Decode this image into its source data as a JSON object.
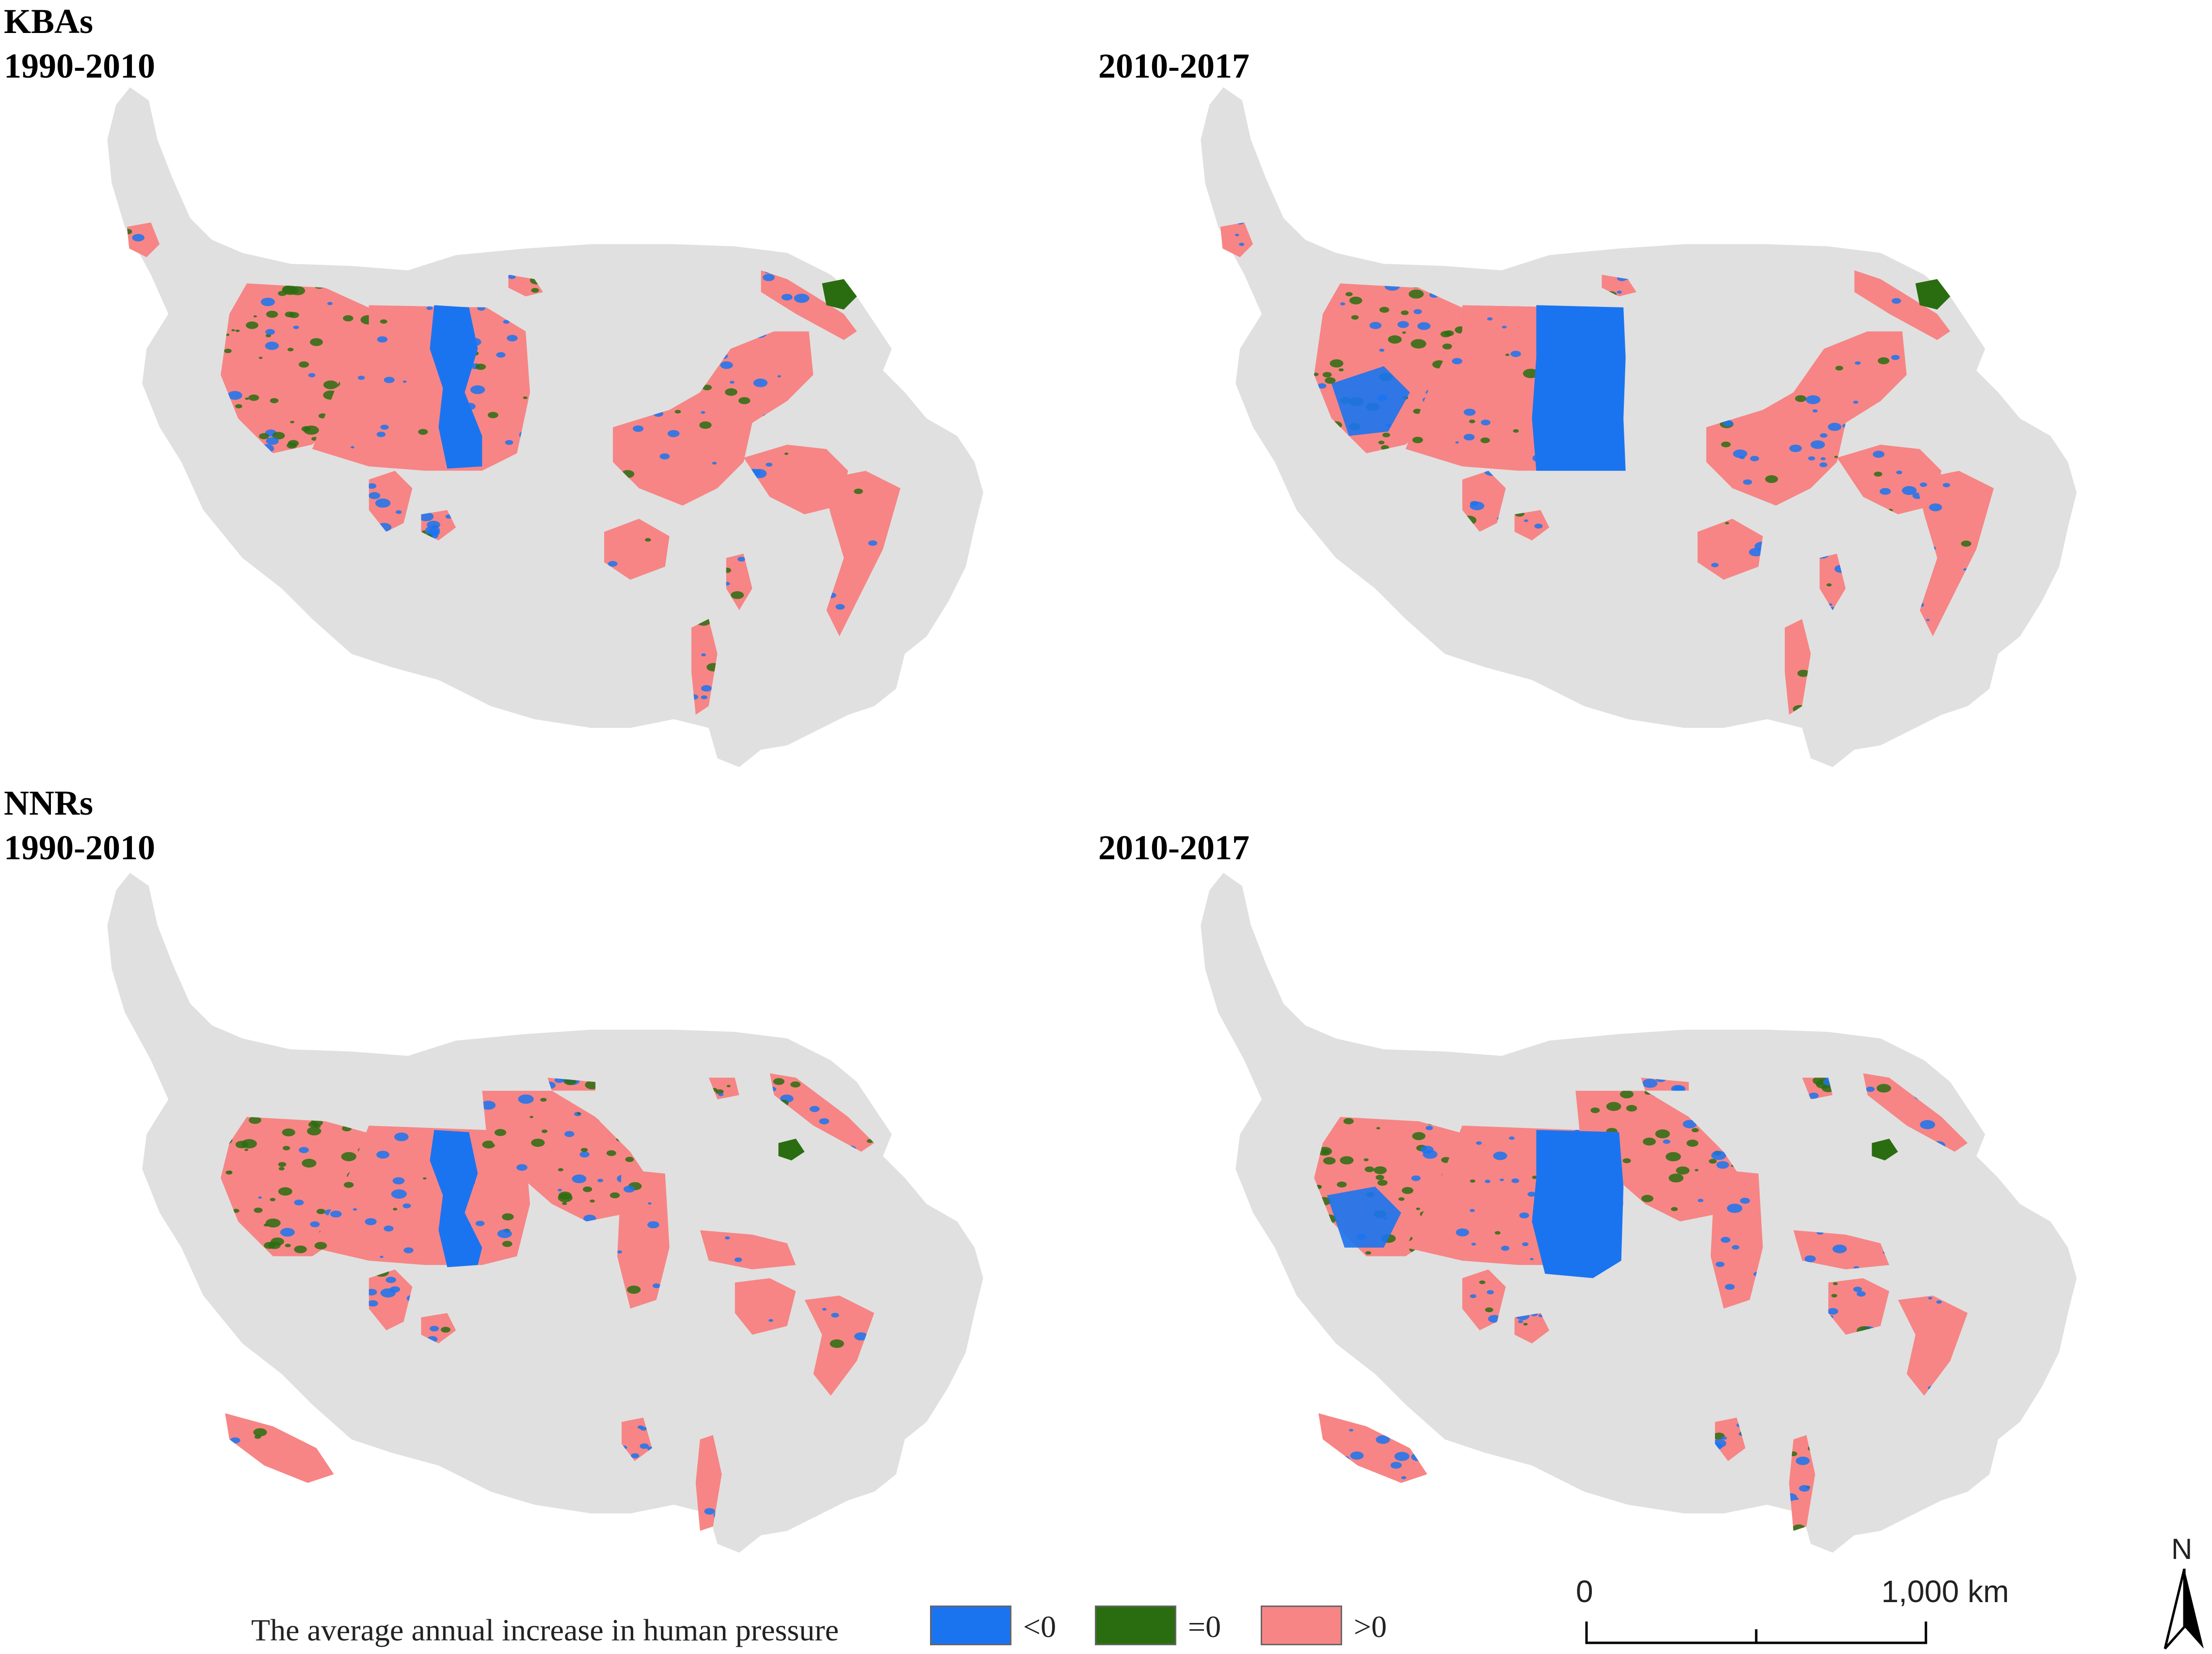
{
  "panels": [
    {
      "id": "kba-1990",
      "group": "KBAs",
      "period": "1990-2010"
    },
    {
      "id": "kba-2010",
      "group": "",
      "period": "2010-2017"
    },
    {
      "id": "nnr-1990",
      "group": "NNRs",
      "period": "1990-2010"
    },
    {
      "id": "nnr-2010",
      "group": "",
      "period": "2010-2017"
    }
  ],
  "legend": {
    "title": "The average annual increase in human pressure",
    "items": [
      {
        "label": "<0",
        "color": "#1a74f0"
      },
      {
        "label": "=0",
        "color": "#2a6d10"
      },
      {
        "label": ">0",
        "color": "#f78585"
      }
    ]
  },
  "scale_bar": {
    "start": "0",
    "end": "1,000 km"
  },
  "north_arrow": {
    "label": "N"
  },
  "colors": {
    "plateau": "#e0e0e0",
    "negative": "#1a74f0",
    "zero": "#2a6d10",
    "positive": "#f78585"
  }
}
